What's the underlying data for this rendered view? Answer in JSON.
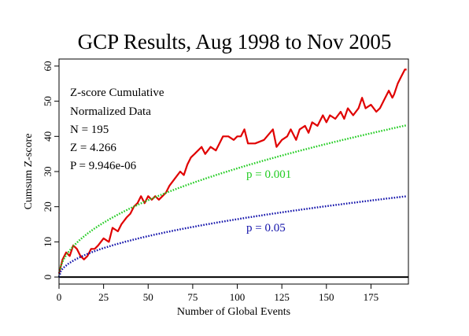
{
  "chart_data": {
    "type": "line",
    "title": "GCP Results, Aug 1998 to Nov 2005",
    "xlabel": "Number of Global Events",
    "ylabel": "Cumsum Z-score",
    "xlim": [
      0,
      196
    ],
    "ylim": [
      -2,
      62
    ],
    "x_ticks": [
      0,
      25,
      50,
      75,
      100,
      125,
      150,
      175
    ],
    "y_ticks": [
      0,
      10,
      20,
      30,
      40,
      50,
      60
    ],
    "grid": false,
    "annotation_lines": [
      "Z-score Cumulative",
      "Normalized Data",
      "N = 195",
      "Z = 4.266",
      "P = 9.946e-06"
    ],
    "series": [
      {
        "name": "Z-score Cumulative",
        "color": "#e00000",
        "style": "solid",
        "x": [
          0,
          2,
          4,
          6,
          8,
          10,
          12,
          14,
          16,
          18,
          20,
          22,
          25,
          28,
          30,
          33,
          35,
          38,
          40,
          42,
          44,
          46,
          48,
          50,
          52,
          54,
          56,
          58,
          60,
          62,
          65,
          68,
          70,
          72,
          74,
          76,
          78,
          80,
          82,
          85,
          88,
          90,
          92,
          95,
          98,
          100,
          102,
          104,
          106,
          110,
          115,
          120,
          122,
          125,
          128,
          130,
          133,
          135,
          138,
          140,
          142,
          145,
          148,
          150,
          152,
          155,
          158,
          160,
          162,
          165,
          168,
          170,
          172,
          175,
          178,
          180,
          182,
          185,
          187,
          188,
          190,
          192,
          194,
          195
        ],
        "values": [
          1,
          5,
          7,
          6,
          9,
          8,
          6,
          5,
          6,
          8,
          8,
          9,
          11,
          10,
          14,
          13,
          15,
          17,
          18,
          20,
          21,
          23,
          21,
          23,
          22,
          23,
          22,
          23,
          24,
          26,
          28,
          30,
          29,
          32,
          34,
          35,
          36,
          37,
          35,
          37,
          36,
          38,
          40,
          40,
          39,
          40,
          40,
          42,
          38,
          38,
          39,
          42,
          37,
          39,
          40,
          42,
          39,
          42,
          43,
          41,
          44,
          43,
          46,
          44,
          46,
          45,
          47,
          45,
          48,
          46,
          48,
          51,
          48,
          49,
          47,
          48,
          50,
          53,
          51,
          52,
          55,
          57,
          59,
          59
        ]
      },
      {
        "name": "p = 0.001",
        "color": "#22cc22",
        "style": "dotted",
        "sqrt_coefficient": 3.09,
        "x_range": [
          0,
          195
        ]
      },
      {
        "name": "p = 0.05",
        "color": "#1111aa",
        "style": "dotted",
        "sqrt_coefficient": 1.645,
        "x_range": [
          0,
          195
        ]
      }
    ],
    "reference_lines": [
      {
        "y": 0,
        "color": "#000000"
      }
    ]
  }
}
